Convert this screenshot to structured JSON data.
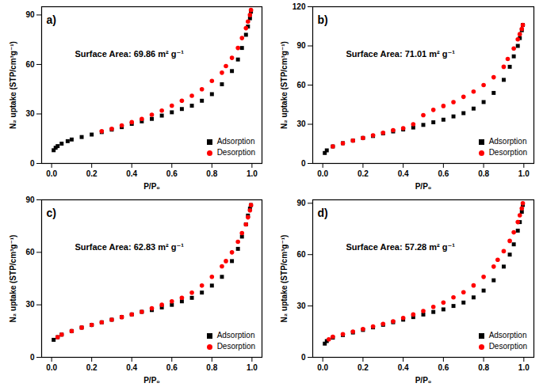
{
  "chart_data": [
    {
      "type": "scatter",
      "title": "a)",
      "annotation": "Surface Area: 69.86 m² g⁻¹",
      "x_label": "P/P₀",
      "y_label": "N₂ uptake (STP/cm³g⁻¹)",
      "xlim": [
        -0.05,
        1.05
      ],
      "ylim": [
        0,
        95
      ],
      "xticks": [
        {
          "value": 0,
          "label": "0.0"
        },
        {
          "value": 0.2,
          "label": "0.2"
        },
        {
          "value": 0.4,
          "label": "0.4"
        },
        {
          "value": 0.6,
          "label": "0.6"
        },
        {
          "value": 0.8,
          "label": "0.8"
        },
        {
          "value": 1,
          "label": "1.0"
        }
      ],
      "yticks": [
        0,
        30,
        60,
        90
      ],
      "grid": false,
      "legend": "lower right",
      "series": [
        {
          "name": "Adsorption",
          "color": "#000000",
          "marker": "square",
          "x": [
            0.01,
            0.02,
            0.03,
            0.05,
            0.08,
            0.1,
            0.15,
            0.2,
            0.25,
            0.3,
            0.35,
            0.4,
            0.45,
            0.5,
            0.55,
            0.6,
            0.65,
            0.7,
            0.75,
            0.8,
            0.85,
            0.9,
            0.93,
            0.95,
            0.97,
            0.98,
            0.99,
            0.995
          ],
          "values": [
            8,
            9.5,
            10.5,
            12,
            13.5,
            14.5,
            16,
            17.5,
            19,
            20.5,
            22,
            24,
            25.5,
            27,
            29,
            31,
            33,
            35,
            38,
            42,
            48,
            56,
            63,
            70,
            78,
            83,
            88,
            92
          ]
        },
        {
          "name": "Desorption",
          "color": "#ff0000",
          "marker": "circle",
          "x": [
            0.995,
            0.99,
            0.98,
            0.97,
            0.95,
            0.93,
            0.9,
            0.87,
            0.85,
            0.8,
            0.75,
            0.7,
            0.65,
            0.6,
            0.55,
            0.5,
            0.45,
            0.4,
            0.35,
            0.3,
            0.25
          ],
          "values": [
            93,
            90,
            86,
            82,
            76,
            70,
            64,
            59,
            55,
            50,
            45,
            41,
            38,
            35,
            32,
            29.5,
            27,
            25,
            23,
            21,
            19.5
          ]
        }
      ]
    },
    {
      "type": "scatter",
      "title": "b)",
      "annotation": "Surface Area: 71.01 m² g⁻¹",
      "x_label": "P/P₀",
      "y_label": "N₂ uptake (STP/cm³g⁻¹)",
      "xlim": [
        -0.05,
        1.05
      ],
      "ylim": [
        0,
        120
      ],
      "xticks": [
        {
          "value": 0,
          "label": "0.0"
        },
        {
          "value": 0.2,
          "label": "0.2"
        },
        {
          "value": 0.4,
          "label": "0.4"
        },
        {
          "value": 0.6,
          "label": "0.6"
        },
        {
          "value": 0.8,
          "label": "0.8"
        },
        {
          "value": 1,
          "label": "1.0"
        }
      ],
      "yticks": [
        0,
        30,
        60,
        90,
        120
      ],
      "grid": false,
      "legend": "lower right",
      "series": [
        {
          "name": "Adsorption",
          "color": "#000000",
          "marker": "square",
          "x": [
            0.01,
            0.02,
            0.05,
            0.1,
            0.15,
            0.2,
            0.25,
            0.3,
            0.35,
            0.4,
            0.45,
            0.5,
            0.55,
            0.6,
            0.65,
            0.7,
            0.75,
            0.8,
            0.85,
            0.9,
            0.93,
            0.95,
            0.97,
            0.98,
            0.99,
            0.995
          ],
          "values": [
            8,
            10,
            13,
            15.5,
            17.5,
            19.5,
            21,
            23,
            24.5,
            26,
            27.5,
            29.5,
            31.5,
            33.5,
            36,
            38.5,
            42,
            47,
            54,
            64,
            74,
            82,
            90,
            96,
            102,
            106
          ]
        },
        {
          "name": "Desorption",
          "color": "#ff0000",
          "marker": "circle",
          "x": [
            0.995,
            0.99,
            0.98,
            0.97,
            0.95,
            0.92,
            0.9,
            0.85,
            0.8,
            0.75,
            0.7,
            0.65,
            0.6,
            0.55,
            0.5,
            0.45,
            0.4,
            0.35,
            0.3,
            0.25,
            0.2,
            0.15,
            0.1,
            0.05
          ],
          "values": [
            106,
            103,
            99,
            95,
            88,
            80,
            74,
            66,
            60,
            55,
            51,
            47,
            44,
            41,
            37,
            30,
            27,
            25.5,
            23.5,
            21.5,
            19.5,
            17.5,
            15.5,
            13
          ]
        }
      ]
    },
    {
      "type": "scatter",
      "title": "c)",
      "annotation": "Surface Area: 62.83 m² g⁻¹",
      "x_label": "P/P₀",
      "y_label": "N₂ uptake (STP/cm³g⁻¹)",
      "xlim": [
        -0.05,
        1.05
      ],
      "ylim": [
        0,
        90
      ],
      "xticks": [
        {
          "value": 0,
          "label": "0.0"
        },
        {
          "value": 0.2,
          "label": "0.2"
        },
        {
          "value": 0.4,
          "label": "0.4"
        },
        {
          "value": 0.6,
          "label": "0.6"
        },
        {
          "value": 0.8,
          "label": "0.8"
        },
        {
          "value": 1,
          "label": "1.0"
        }
      ],
      "yticks": [
        0,
        30,
        60,
        90
      ],
      "grid": false,
      "legend": "lower right",
      "series": [
        {
          "name": "Adsorption",
          "color": "#000000",
          "marker": "square",
          "x": [
            0.01,
            0.03,
            0.05,
            0.1,
            0.15,
            0.2,
            0.25,
            0.3,
            0.35,
            0.4,
            0.45,
            0.5,
            0.55,
            0.6,
            0.65,
            0.7,
            0.75,
            0.8,
            0.85,
            0.9,
            0.93,
            0.95,
            0.97,
            0.98,
            0.99,
            0.995
          ],
          "values": [
            10,
            11.5,
            13,
            15,
            17,
            18.5,
            20,
            21.5,
            23,
            24.5,
            26,
            27,
            28.5,
            30,
            32,
            34,
            37,
            41,
            46,
            55,
            62,
            69,
            76,
            81,
            85,
            87
          ]
        },
        {
          "name": "Desorption",
          "color": "#ff0000",
          "marker": "circle",
          "x": [
            0.995,
            0.99,
            0.98,
            0.97,
            0.95,
            0.93,
            0.9,
            0.87,
            0.85,
            0.8,
            0.75,
            0.7,
            0.65,
            0.6,
            0.55,
            0.5,
            0.45,
            0.4,
            0.35,
            0.3,
            0.25,
            0.2,
            0.15,
            0.1,
            0.05,
            0.03
          ],
          "values": [
            87,
            84,
            80,
            76,
            71,
            66,
            60,
            55,
            52,
            46,
            41,
            37,
            34,
            32,
            30,
            28,
            26,
            24.5,
            23,
            21.5,
            20,
            18.5,
            17,
            15,
            13,
            11.5
          ]
        }
      ]
    },
    {
      "type": "scatter",
      "title": "d)",
      "annotation": "Surface Area: 57.28 m² g⁻¹",
      "x_label": "P/P₀",
      "y_label": "N₂ uptake (STP/cm³g⁻¹)",
      "xlim": [
        -0.05,
        1.05
      ],
      "ylim": [
        0,
        92
      ],
      "xticks": [
        {
          "value": 0,
          "label": "0.0"
        },
        {
          "value": 0.2,
          "label": "0.2"
        },
        {
          "value": 0.4,
          "label": "0.4"
        },
        {
          "value": 0.6,
          "label": "0.6"
        },
        {
          "value": 0.8,
          "label": "0.8"
        },
        {
          "value": 1,
          "label": "1.0"
        }
      ],
      "yticks": [
        0,
        30,
        60,
        90
      ],
      "grid": false,
      "legend": "lower right",
      "series": [
        {
          "name": "Adsorption",
          "color": "#000000",
          "marker": "square",
          "x": [
            0.01,
            0.02,
            0.05,
            0.1,
            0.15,
            0.2,
            0.25,
            0.3,
            0.35,
            0.4,
            0.45,
            0.5,
            0.55,
            0.6,
            0.65,
            0.7,
            0.75,
            0.8,
            0.85,
            0.9,
            0.93,
            0.95,
            0.97,
            0.98,
            0.99,
            0.995
          ],
          "values": [
            8,
            9.5,
            11.5,
            13,
            14.5,
            16,
            17.5,
            19,
            20.5,
            22,
            23.5,
            25,
            26.5,
            28,
            30,
            32,
            35,
            39,
            45,
            53,
            60,
            66,
            74,
            79,
            85,
            89
          ]
        },
        {
          "name": "Desorption",
          "color": "#ff0000",
          "marker": "circle",
          "x": [
            0.995,
            0.99,
            0.98,
            0.97,
            0.95,
            0.93,
            0.9,
            0.87,
            0.85,
            0.8,
            0.75,
            0.7,
            0.65,
            0.6,
            0.55,
            0.5,
            0.45,
            0.4,
            0.35,
            0.3,
            0.25,
            0.2,
            0.15,
            0.1,
            0.05,
            0.03
          ],
          "values": [
            90,
            87,
            83,
            79,
            73,
            68,
            62,
            57,
            53,
            47,
            42,
            38,
            35,
            32,
            29.5,
            27,
            25,
            23,
            21,
            19.5,
            18,
            16.5,
            15,
            13.5,
            12,
            10.5
          ]
        }
      ]
    }
  ]
}
